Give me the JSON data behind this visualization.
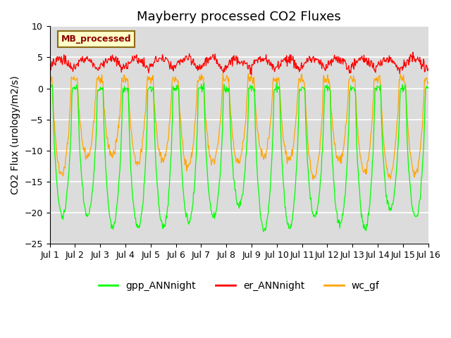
{
  "title": "Mayberry processed CO2 Fluxes",
  "ylabel": "CO2 Flux (urology/m2/s)",
  "ylim": [
    -25,
    10
  ],
  "yticks": [
    -25,
    -20,
    -15,
    -10,
    -5,
    0,
    5,
    10
  ],
  "n_days": 15,
  "pts_per_day": 48,
  "legend_label": "MB_processed",
  "line_colors": {
    "gpp": "#00FF00",
    "er": "#FF0000",
    "wc": "#FFA500"
  },
  "line_labels": [
    "gpp_ANNnight",
    "er_ANNnight",
    "wc_gf"
  ],
  "background_color": "#DCDCDC",
  "grid_color": "#FFFFFF",
  "legend_box_facecolor": "#FFFFC8",
  "legend_box_edgecolor": "#8B6914",
  "legend_text_color": "#8B0000",
  "title_fontsize": 13,
  "axis_fontsize": 10,
  "tick_fontsize": 9,
  "xtick_labels": [
    "Jul 1",
    "Jul 2",
    "Jul 3",
    "Jul 4",
    "Jul 5",
    "Jul 6",
    "Jul 7",
    "Jul 8",
    "Jul 9",
    "Jul 10",
    "Jul 11",
    "Jul 12",
    "Jul 13",
    "Jul 14",
    "Jul 15",
    "Jul 16"
  ],
  "xtick_positions": [
    0,
    1,
    2,
    3,
    4,
    5,
    6,
    7,
    8,
    9,
    10,
    11,
    12,
    13,
    14,
    15
  ]
}
